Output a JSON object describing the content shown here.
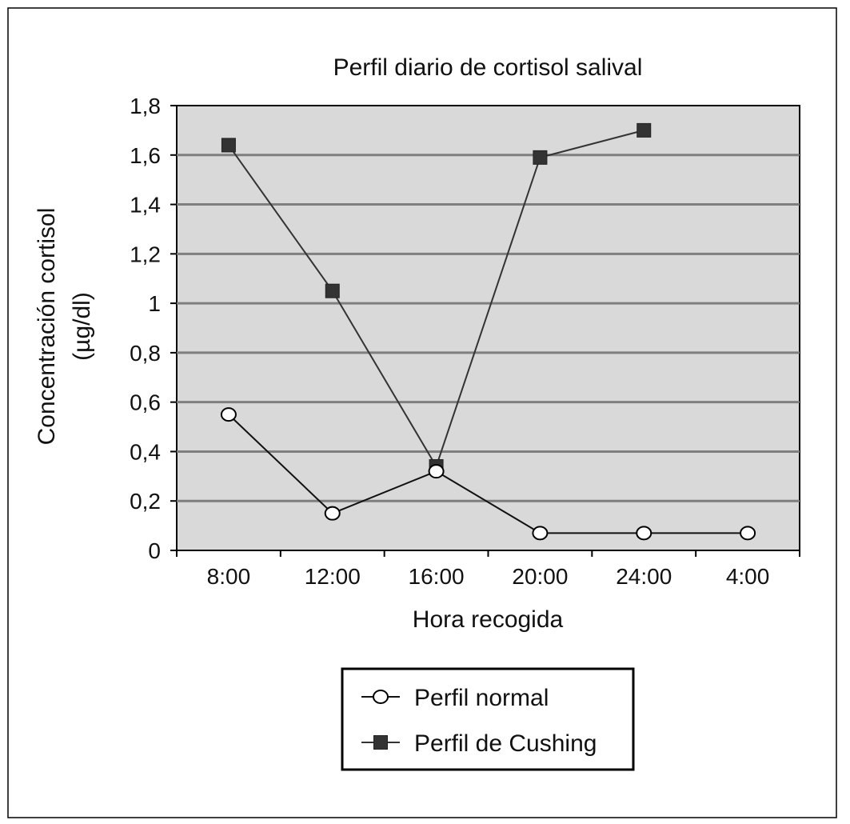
{
  "chart_data": {
    "type": "line",
    "title": "Perfil diario de cortisol salival",
    "xlabel": "Hora recogida",
    "ylabel_line1": "Concentración cortisol",
    "ylabel_line2": "(µg/dl)",
    "categories": [
      "8:00",
      "12:00",
      "16:00",
      "20:00",
      "24:00",
      "4:00"
    ],
    "ylim": [
      0,
      1.8
    ],
    "yticks": [
      0,
      0.2,
      0.4,
      0.6,
      0.8,
      1,
      1.2,
      1.4,
      1.6,
      1.8
    ],
    "ytick_labels": [
      "0",
      "0,2",
      "0,4",
      "0,6",
      "0,8",
      "1",
      "1,2",
      "1,4",
      "1,6",
      "1,8"
    ],
    "grid": true,
    "legend_position": "bottom",
    "plot_background": "#d9d9d9",
    "series": [
      {
        "name": "Perfil normal",
        "marker": "circle",
        "color": "#111111",
        "values": [
          0.55,
          0.15,
          0.32,
          0.07,
          0.07,
          0.07
        ]
      },
      {
        "name": "Perfil de Cushing",
        "marker": "square",
        "color": "#333333",
        "values": [
          1.64,
          1.05,
          0.34,
          1.59,
          1.7,
          null
        ]
      }
    ]
  }
}
